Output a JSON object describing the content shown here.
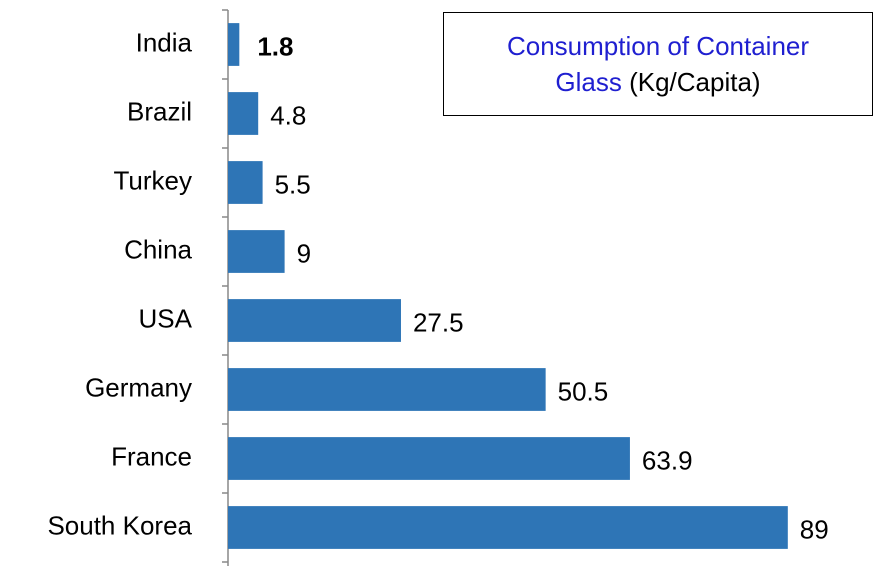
{
  "chart_data": {
    "type": "barh",
    "title": "Consumption of Container Glass",
    "title_unit": "(Kg/Capita)",
    "title_color": "#1f1fd0",
    "categories": [
      "India",
      "Brazil",
      "Turkey",
      "China",
      "USA",
      "Germany",
      "France",
      "South Korea"
    ],
    "values": [
      1.8,
      4.8,
      5.5,
      9,
      27.5,
      50.5,
      63.9,
      89
    ],
    "color": "#2e75b6",
    "value_label_colors": [
      "#ff0000",
      "#000000",
      "#000000",
      "#000000",
      "#000000",
      "#000000",
      "#000000",
      "#000000"
    ],
    "xlim": [
      0,
      100
    ]
  }
}
